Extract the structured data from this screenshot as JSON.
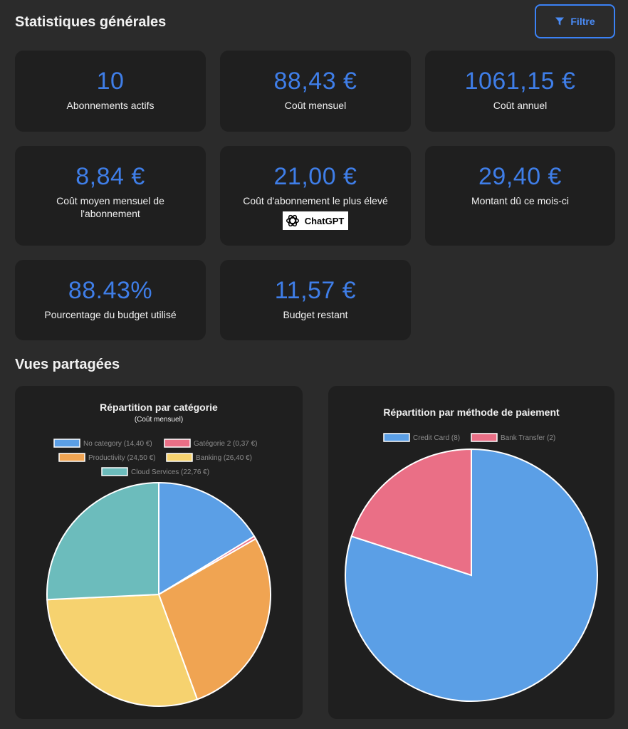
{
  "header": {
    "title": "Statistiques générales",
    "filter_label": "Filtre"
  },
  "stats": [
    {
      "value": "10",
      "label": "Abonnements actifs"
    },
    {
      "value": "88,43 €",
      "label": "Coût mensuel"
    },
    {
      "value": "1061,15 €",
      "label": "Coût annuel"
    },
    {
      "value": "8,84 €",
      "label": "Coût moyen mensuel de l'abonnement"
    },
    {
      "value": "21,00 €",
      "label": "Coût d'abonnement le plus élevé",
      "logo": "ChatGPT"
    },
    {
      "value": "29,40 €",
      "label": "Montant dû ce mois-ci"
    },
    {
      "value": "88.43%",
      "label": "Pourcentage du budget utilisé"
    },
    {
      "value": "11,57 €",
      "label": "Budget restant"
    }
  ],
  "shared": {
    "title": "Vues partagées"
  },
  "chart_data": [
    {
      "type": "pie",
      "title": "Répartition par catégorie",
      "subtitle": "(Coût mensuel)",
      "categories": [
        "No category",
        "Gatégorie 2",
        "Productivity",
        "Banking",
        "Cloud Services"
      ],
      "values": [
        14.4,
        0.37,
        24.5,
        26.4,
        22.76
      ],
      "legend": [
        "No category (14,40 €)",
        "Gatégorie 2 (0,37 €)",
        "Productivity (24,50 €)",
        "Banking (26,40 €)",
        "Cloud Services (22,76 €)"
      ],
      "colors": [
        "#5b9fe6",
        "#ea6f86",
        "#f0a452",
        "#f6d26f",
        "#6cbcbc"
      ]
    },
    {
      "type": "pie",
      "title": "Répartition par méthode de paiement",
      "categories": [
        "Credit Card",
        "Bank Transfer"
      ],
      "values": [
        8,
        2
      ],
      "legend": [
        "Credit Card (8)",
        "Bank Transfer (2)"
      ],
      "colors": [
        "#5b9fe6",
        "#ea6f86"
      ]
    }
  ]
}
